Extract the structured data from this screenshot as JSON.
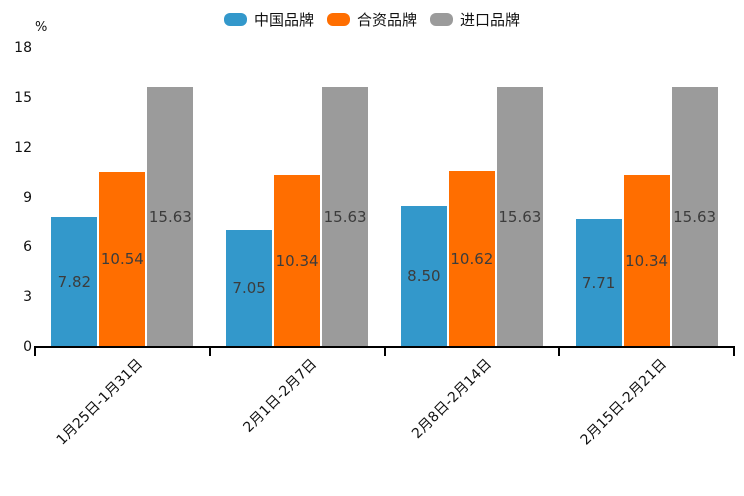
{
  "chart_data": {
    "type": "bar",
    "title": "",
    "unit_label": "%",
    "categories": [
      "1月25日-1月31日",
      "2月1日-2月7日",
      "2月8日-2月14日",
      "2月15日-2月21日"
    ],
    "series": [
      {
        "name": "中国品牌",
        "color": "#3398CB",
        "values": [
          7.82,
          7.05,
          8.5,
          7.71
        ]
      },
      {
        "name": "合资品牌",
        "color": "#FF6E00",
        "values": [
          10.54,
          10.34,
          10.62,
          10.34
        ]
      },
      {
        "name": "进口品牌",
        "color": "#9B9B9B",
        "values": [
          15.63,
          15.63,
          15.63,
          15.63
        ]
      }
    ],
    "y_ticks": [
      0,
      3,
      6,
      9,
      12,
      15,
      18
    ],
    "ylim": [
      0,
      18
    ],
    "legend_position": "top",
    "grid": false,
    "value_label_format": "0.00",
    "value_label_position": "inside-center",
    "xlabel": "",
    "ylabel": "%"
  }
}
